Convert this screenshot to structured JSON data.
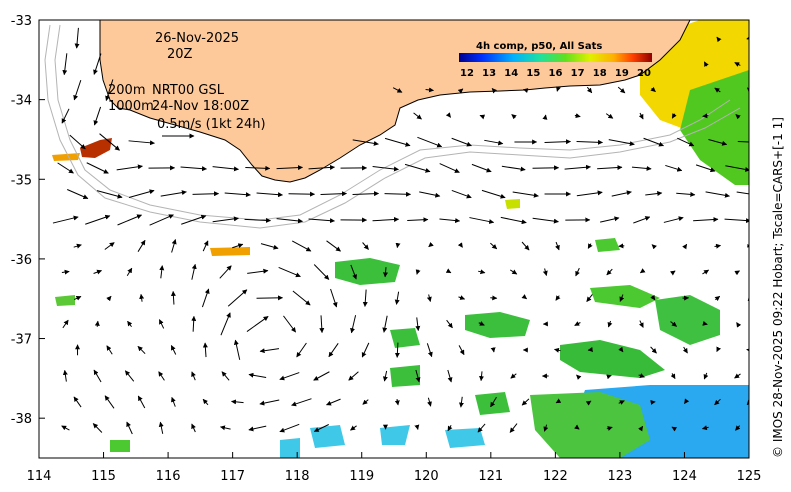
{
  "map": {
    "date": "26-Nov-2025",
    "hour": "20Z",
    "contour_shallow": "200m",
    "contour_deep": "1000m",
    "product": "NRT00 GSL",
    "altimetry_time": "24-Nov 18:00Z",
    "scale_label": "0.5m/s (1kt 24h)",
    "credit": "© IMOS 28-Nov-2025 09:22 Hobart; Tscale=CARS+[-1 1]"
  },
  "colorbar": {
    "title": "4h comp, p50, All Sats",
    "ticks": [
      "12",
      "13",
      "14",
      "15",
      "16",
      "17",
      "18",
      "19",
      "20"
    ]
  },
  "axes": {
    "x_ticks": [
      "114",
      "115",
      "116",
      "117",
      "118",
      "119",
      "120",
      "121",
      "122",
      "123",
      "124",
      "125"
    ],
    "y_ticks": [
      "-33",
      "-34",
      "-35",
      "-36",
      "-37",
      "-38"
    ],
    "lon_range": [
      114,
      125
    ],
    "lat_range": [
      -38.5,
      -33
    ]
  },
  "colors": {
    "land": "#fdc99a",
    "frame": "#000000",
    "contour": "#b4b4b4"
  }
}
